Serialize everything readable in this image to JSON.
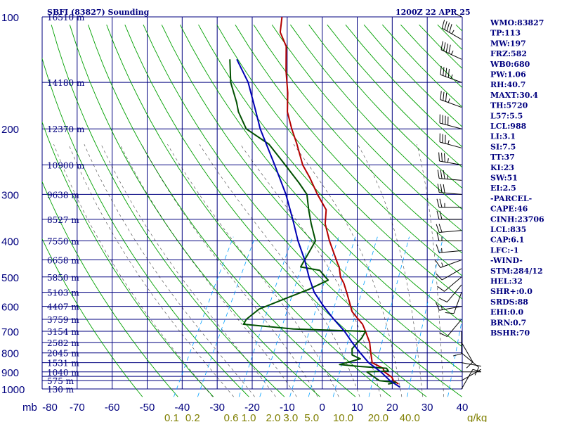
{
  "chart_data": {
    "type": "line",
    "title": "SBFI (83827) Sounding",
    "time_label": "1200Z 22 APR 25",
    "y_unit": "mb",
    "w_unit": "g/kg",
    "pressure_axis": {
      "levels": [
        100,
        200,
        300,
        400,
        500,
        600,
        700,
        800,
        900,
        1000
      ],
      "scale": "log"
    },
    "pressure_gridlines": [
      100,
      150,
      200,
      250,
      300,
      350,
      400,
      450,
      500,
      550,
      600,
      650,
      700,
      750,
      800,
      850,
      900,
      925,
      950,
      1000
    ],
    "temperature_axis": {
      "ticks": [
        -80,
        -70,
        -60,
        -50,
        -40,
        -30,
        -20,
        -10,
        0,
        10,
        20,
        30,
        40
      ],
      "range": [
        -80,
        40
      ]
    },
    "mixing_ratio_labels": [
      {
        "label": "0.1",
        "T": -43
      },
      {
        "label": "0.2",
        "T": -37
      },
      {
        "label": "0.6",
        "T": -26
      },
      {
        "label": "1.0",
        "T": -21
      },
      {
        "label": "2.0",
        "T": -14
      },
      {
        "label": "3.0",
        "T": -9
      },
      {
        "label": "5.0",
        "T": -3
      },
      {
        "label": "10.0",
        "T": 6
      },
      {
        "label": "20.0",
        "T": 16
      },
      {
        "label": "40.0",
        "T": 25
      }
    ],
    "height_labels": [
      {
        "p": 100,
        "label": "16510 m"
      },
      {
        "p": 150,
        "label": "14180 m"
      },
      {
        "p": 200,
        "label": "12370 m"
      },
      {
        "p": 250,
        "label": "10900 m"
      },
      {
        "p": 300,
        "label": "9638 m"
      },
      {
        "p": 350,
        "label": "8527 m"
      },
      {
        "p": 400,
        "label": "7550 m"
      },
      {
        "p": 450,
        "label": "6658 m"
      },
      {
        "p": 500,
        "label": "5850 m"
      },
      {
        "p": 550,
        "label": "5103 m"
      },
      {
        "p": 600,
        "label": "4407 m"
      },
      {
        "p": 650,
        "label": "3759 m"
      },
      {
        "p": 700,
        "label": "3154 m"
      },
      {
        "p": 750,
        "label": "2582 m"
      },
      {
        "p": 800,
        "label": "2045 m"
      },
      {
        "p": 850,
        "label": "1531 m"
      },
      {
        "p": 900,
        "label": "1040 m"
      },
      {
        "p": 950,
        "label": "575 m"
      },
      {
        "p": 1000,
        "label": "130 m"
      }
    ],
    "series": [
      {
        "points": [
          [
            970,
            21
          ],
          [
            950,
            19
          ],
          [
            930,
            18
          ],
          [
            900,
            15
          ],
          [
            880,
            14
          ],
          [
            850,
            10
          ],
          [
            800,
            8
          ],
          [
            750,
            6
          ],
          [
            700,
            3
          ],
          [
            670,
            1
          ],
          [
            660,
            0
          ],
          [
            620,
            -4
          ],
          [
            560,
            -8
          ],
          [
            520,
            -11
          ],
          [
            500,
            -13
          ],
          [
            470,
            -15
          ],
          [
            460,
            -16
          ],
          [
            400,
            -22
          ],
          [
            360,
            -26
          ],
          [
            330,
            -28
          ],
          [
            300,
            -33
          ],
          [
            270,
            -38
          ],
          [
            250,
            -42
          ],
          [
            220,
            -47
          ],
          [
            200,
            -51
          ],
          [
            180,
            -55
          ],
          [
            160,
            -58
          ],
          [
            140,
            -62
          ],
          [
            120,
            -66
          ],
          [
            110,
            -70
          ],
          [
            100,
            -72
          ]
        ]
      },
      {
        "points": [
          [
            970,
            18
          ],
          [
            960,
            20
          ],
          [
            950,
            15
          ],
          [
            920,
            12
          ],
          [
            900,
            10
          ],
          [
            895,
            16
          ],
          [
            880,
            15
          ],
          [
            870,
            7
          ],
          [
            860,
            1
          ],
          [
            830,
            6
          ],
          [
            810,
            3
          ],
          [
            780,
            2
          ],
          [
            730,
            3
          ],
          [
            700,
            3
          ],
          [
            690,
            -18
          ],
          [
            670,
            -33
          ],
          [
            650,
            -33
          ],
          [
            610,
            -31
          ],
          [
            570,
            -25
          ],
          [
            540,
            -20
          ],
          [
            510,
            -16
          ],
          [
            480,
            -20
          ],
          [
            470,
            -26
          ],
          [
            440,
            -26
          ],
          [
            400,
            -26
          ],
          [
            360,
            -30
          ],
          [
            330,
            -33
          ],
          [
            300,
            -36
          ],
          [
            280,
            -40
          ],
          [
            250,
            -47
          ],
          [
            220,
            -55
          ],
          [
            200,
            -64
          ],
          [
            180,
            -69
          ],
          [
            170,
            -71
          ],
          [
            150,
            -76
          ],
          [
            130,
            -80
          ]
        ]
      },
      {
        "points": [
          [
            990,
            22
          ],
          [
            950,
            18
          ],
          [
            900,
            14
          ],
          [
            850,
            9
          ],
          [
            800,
            5
          ],
          [
            750,
            1
          ],
          [
            700,
            -3
          ],
          [
            650,
            -8
          ],
          [
            600,
            -13
          ],
          [
            550,
            -18
          ],
          [
            500,
            -22
          ],
          [
            450,
            -26
          ],
          [
            400,
            -31
          ],
          [
            350,
            -36
          ],
          [
            300,
            -42
          ],
          [
            250,
            -50
          ],
          [
            200,
            -60
          ],
          [
            180,
            -64
          ],
          [
            150,
            -71
          ],
          [
            130,
            -78
          ]
        ]
      }
    ],
    "indices": [
      "WMO:83827",
      "TP:113",
      "MW:197",
      "FRZ:582",
      "WB0:680",
      "PW:1.06",
      "RH:40.7",
      "MAXT:30.4",
      "TH:5720",
      "L57:5.5",
      "LCL:988",
      "LI:3.1",
      "SI:7.5",
      "TT:37",
      "KI:23",
      "SW:51",
      "EI:2.5",
      "-PARCEL-",
      "CAPE:46",
      "CINH:23706",
      "LCL:835",
      "CAP:6.1",
      "LFC:-1",
      "-WIND-",
      "STM:284/12",
      "HEL:32",
      "SHR+:0.0",
      "SRDS:88",
      "EHI:0.0",
      "BRN:0.7",
      "BSHR:70"
    ]
  },
  "colors": {
    "background": "#ffffff",
    "grid": "#00007f",
    "dry_adiabat": "#00a000",
    "moist_adiabat": "#000000",
    "mixing_ratio": "#00a0ff",
    "temperature": "#b40000",
    "dewpoint": "#005000",
    "parcel": "#0000b4",
    "wind_barb": "#000000",
    "mixing_label": "#7f7f00"
  }
}
